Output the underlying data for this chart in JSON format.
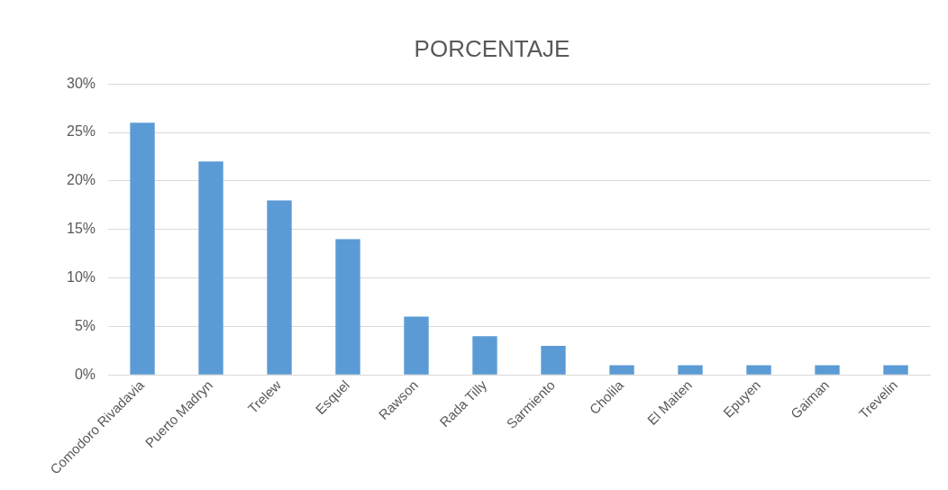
{
  "chart_data": {
    "type": "bar",
    "title": "PORCENTAJE",
    "categories": [
      "Comodoro Rivadavia",
      "Puerto Madryn",
      "Trelew",
      "Esquel",
      "Rawson",
      "Rada Tilly",
      "Sarmiento",
      "Cholila",
      "El Maiten",
      "Epuyen",
      "Gaiman",
      "Trevelin"
    ],
    "values": [
      26,
      22,
      18,
      14,
      6,
      4,
      3,
      1,
      1,
      1,
      1,
      1
    ],
    "color": "#5b9bd5",
    "ylim": [
      0,
      30
    ],
    "yticks": [
      {
        "value": 0,
        "label": "0%"
      },
      {
        "value": 5,
        "label": "5%"
      },
      {
        "value": 10,
        "label": "10%"
      },
      {
        "value": 15,
        "label": "15%"
      },
      {
        "value": 20,
        "label": "20%"
      },
      {
        "value": 25,
        "label": "25%"
      },
      {
        "value": 30,
        "label": "30%"
      }
    ],
    "grid": "y",
    "legend": false
  }
}
